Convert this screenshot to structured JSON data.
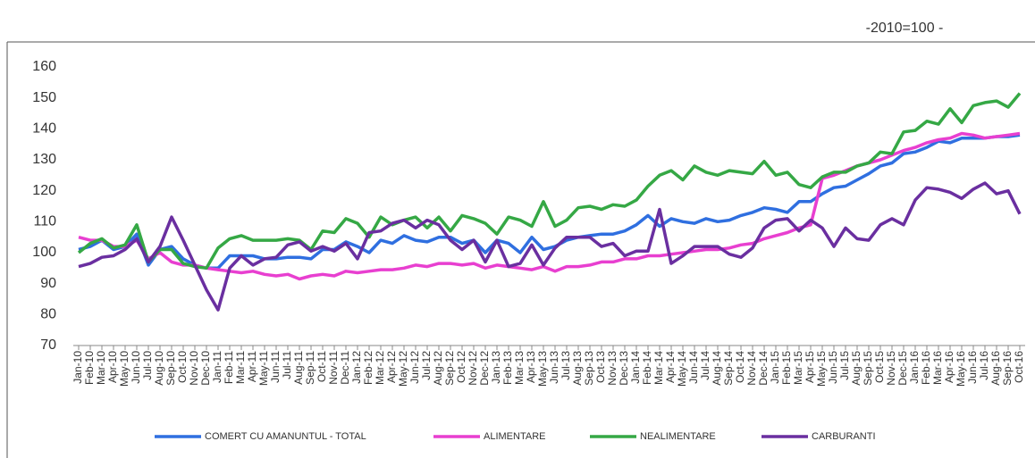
{
  "chart_data": {
    "type": "line",
    "subtitle": "-2010=100 -",
    "categories": [
      "Jan-10",
      "Feb-10",
      "Mar-10",
      "Apr-10",
      "May-10",
      "Jun-10",
      "Jul-10",
      "Aug-10",
      "Sep-10",
      "Oct-10",
      "Nov-10",
      "Dec-10",
      "Jan-11",
      "Feb-11",
      "Mar-11",
      "Apr-11",
      "May-11",
      "Jun-11",
      "Jul-11",
      "Aug-11",
      "Sep-11",
      "Oct-11",
      "Nov-11",
      "Dec-11",
      "Jan-12",
      "Feb-12",
      "Mar-12",
      "Apr-12",
      "May-12",
      "Jun-12",
      "Jul-12",
      "Aug-12",
      "Sep-12",
      "Oct-12",
      "Nov-12",
      "Dec-12",
      "Jan-13",
      "Feb-13",
      "Mar-13",
      "Apr-13",
      "May-13",
      "Jun-13",
      "Jul-13",
      "Aug-13",
      "Sep-13",
      "Oct-13",
      "Nov-13",
      "Dec-13",
      "Jan-14",
      "Feb-14",
      "Mar-14",
      "Apr-14",
      "May-14",
      "Jun-14",
      "Jul-14",
      "Aug-14",
      "Sep-14",
      "Oct-14",
      "Nov-14",
      "Dec-14",
      "Jan-15",
      "Feb-15",
      "Mar-15",
      "Apr-15",
      "May-15",
      "Jun-15",
      "Jul-15",
      "Aug-15",
      "Sep-15",
      "Oct-15",
      "Nov-15",
      "Dec-15",
      "Jan-16",
      "Feb-16",
      "Mar-16",
      "Apr-16",
      "May-16",
      "Jun-16",
      "Jul-16",
      "Aug-16",
      "Sep-16",
      "Oct-16"
    ],
    "series": [
      {
        "name": "COMERT CU AMANUNTUL - TOTAL",
        "color": "#2f6fe0",
        "values": [
          101,
          102,
          104,
          101,
          102,
          106,
          96,
          101,
          102,
          98,
          96,
          95,
          95,
          99,
          99,
          99,
          98,
          98,
          98.5,
          98.5,
          98,
          101,
          101,
          103.5,
          102,
          100,
          104,
          103,
          105.5,
          104,
          103.5,
          105,
          105,
          103,
          104,
          100,
          104,
          103,
          100,
          105,
          101,
          102,
          104,
          105,
          105.5,
          106,
          106,
          107,
          109,
          112,
          108.5,
          111,
          110,
          109.5,
          111,
          110,
          110.5,
          112,
          113,
          114.5,
          114,
          113,
          116.5,
          116.5,
          119,
          121,
          121.5,
          123.5,
          125.5,
          128,
          129,
          132,
          132.5,
          134,
          136,
          135.5,
          137,
          137,
          137,
          137.5,
          137.5,
          138
        ]
      },
      {
        "name": "ALIMENTARE",
        "color": "#e83fd0",
        "values": [
          105,
          104,
          104,
          102,
          102,
          104,
          98,
          100,
          97,
          96,
          96,
          95,
          94.5,
          94,
          93.5,
          94,
          93,
          92.5,
          93,
          91.5,
          92.5,
          93,
          92.5,
          94,
          93.5,
          94,
          94.5,
          94.5,
          95,
          96,
          95.5,
          96.5,
          96.5,
          96,
          96.5,
          95,
          96,
          95.5,
          95,
          94.5,
          95.5,
          94,
          95.5,
          95.5,
          96,
          97,
          97,
          98,
          98,
          99,
          99,
          99.5,
          100,
          100.5,
          101,
          101,
          101.5,
          102.5,
          103,
          104.5,
          105.5,
          106.5,
          108,
          109,
          124,
          125,
          126.5,
          128,
          129,
          130,
          131.5,
          133,
          134,
          135.5,
          136.5,
          137,
          138.5,
          138,
          137,
          137.5,
          138,
          138.5
        ]
      },
      {
        "name": "NEALIMENTARE",
        "color": "#35a845",
        "values": [
          100,
          103,
          104.5,
          101.5,
          102.5,
          109,
          97,
          101,
          101,
          96.5,
          95.5,
          95,
          101.5,
          104.5,
          105.5,
          104,
          104,
          104,
          104.5,
          104,
          101,
          107,
          106.5,
          111,
          109.5,
          105,
          111.5,
          109,
          110.5,
          111.5,
          108,
          111.5,
          107,
          112,
          111,
          109.5,
          106,
          111.5,
          110.5,
          108.5,
          116.5,
          108.5,
          110.5,
          114.5,
          115,
          114,
          115.5,
          115,
          117,
          121.5,
          125,
          126.5,
          123.5,
          128,
          126,
          125,
          126.5,
          126,
          125.5,
          129.5,
          125,
          126,
          122,
          121,
          124.5,
          126,
          126,
          128,
          129,
          132.5,
          132,
          139,
          139.5,
          142.5,
          141.5,
          146.5,
          142,
          147.5,
          148.5,
          149,
          147,
          151.5
        ]
      },
      {
        "name": "CARBURANTI",
        "color": "#6a2fa0",
        "values": [
          95.5,
          96.5,
          98.5,
          99,
          101,
          104.5,
          97,
          102,
          111.5,
          104,
          96,
          88,
          81.5,
          95,
          99,
          96,
          98,
          98.5,
          102.5,
          103.5,
          100.5,
          102,
          100.5,
          103,
          98,
          106.5,
          107,
          109.5,
          110.5,
          108,
          110.5,
          109,
          104,
          101,
          104,
          97,
          104,
          95.5,
          96.5,
          102.5,
          96,
          101.5,
          105,
          105,
          105,
          102,
          103,
          99,
          100.5,
          100.5,
          114,
          96.5,
          99,
          102,
          102,
          102,
          99.5,
          98.5,
          101.5,
          108,
          110.5,
          111,
          107,
          110.5,
          108,
          102,
          108,
          104.5,
          104,
          109,
          111,
          109,
          117,
          121,
          120.5,
          119.5,
          117.5,
          120.5,
          122.5,
          119,
          120,
          112.5
        ]
      }
    ],
    "ylim": [
      70,
      160
    ],
    "yticks": [
      70,
      80,
      90,
      100,
      110,
      120,
      130,
      140,
      150,
      160
    ]
  }
}
